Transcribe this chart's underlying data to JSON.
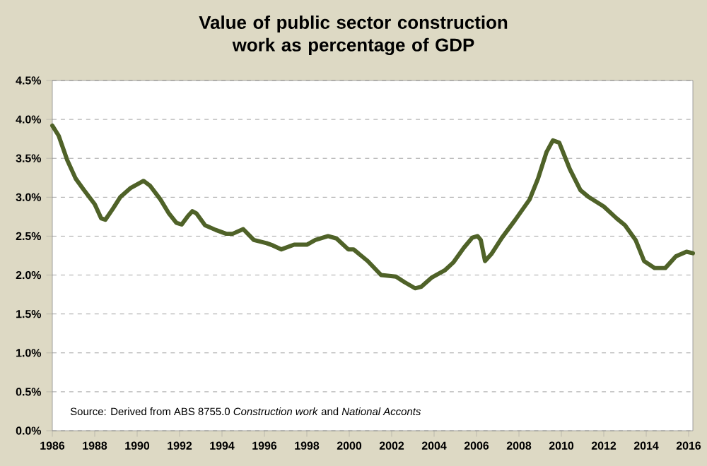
{
  "chart_data": {
    "type": "line",
    "title": "Value of public sector construction work as percentage of GDP",
    "annotations": [
      "Source:  Derived from ABS 8755.0 *Construction work* and *National Acconts*"
    ],
    "x": [
      1986,
      1986.3,
      1986.7,
      1987.1,
      1987.5,
      1988,
      1988.3,
      1988.5,
      1988.85,
      1989.2,
      1989.7,
      1990.3,
      1990.6,
      1991.1,
      1991.5,
      1991.85,
      1992.1,
      1992.4,
      1992.6,
      1992.8,
      1993.2,
      1993.7,
      1994.2,
      1994.5,
      1995,
      1995.5,
      1996.1,
      1996.4,
      1996.8,
      1997.4,
      1998,
      1998.4,
      1999,
      1999.4,
      1999.95,
      2000.2,
      2000.87,
      2001.5,
      2002.2,
      2002.6,
      2003.1,
      2003.4,
      2003.9,
      2004.5,
      2004.9,
      2005.4,
      2005.8,
      2006.05,
      2006.2,
      2006.4,
      2006.7,
      2007.2,
      2007.8,
      2008.5,
      2008.9,
      2009.3,
      2009.6,
      2009.9,
      2010.4,
      2010.9,
      2011.3,
      2012,
      2012.6,
      2013,
      2013.5,
      2013.9,
      2014.4,
      2014.9,
      2015.4,
      2015.9,
      2016.2
    ],
    "series": [
      {
        "color": "#4f6228",
        "values": [
          3.92,
          3.79,
          3.48,
          3.24,
          3.09,
          2.91,
          2.73,
          2.71,
          2.85,
          3.0,
          3.12,
          3.21,
          3.15,
          2.97,
          2.79,
          2.67,
          2.65,
          2.76,
          2.82,
          2.79,
          2.64,
          2.58,
          2.53,
          2.53,
          2.59,
          2.45,
          2.41,
          2.38,
          2.33,
          2.39,
          2.39,
          2.45,
          2.5,
          2.47,
          2.33,
          2.33,
          2.18,
          2.0,
          1.98,
          1.91,
          1.83,
          1.85,
          1.97,
          2.06,
          2.16,
          2.35,
          2.48,
          2.5,
          2.45,
          2.18,
          2.27,
          2.48,
          2.7,
          2.97,
          3.24,
          3.58,
          3.73,
          3.7,
          3.36,
          3.09,
          3.0,
          2.88,
          2.73,
          2.64,
          2.45,
          2.18,
          2.09,
          2.09,
          2.24,
          2.3,
          2.28
        ]
      }
    ],
    "xlim": [
      1986,
      2016.2
    ],
    "ylim": [
      0,
      4.5
    ],
    "xticks": [
      1986,
      1988,
      1990,
      1992,
      1994,
      1996,
      1998,
      2000,
      2002,
      2004,
      2006,
      2008,
      2010,
      2012,
      2014,
      2016
    ],
    "yticks": [
      {
        "value": 0,
        "label": "0.0%"
      },
      {
        "value": 0.5,
        "label": "0.5%"
      },
      {
        "value": 1,
        "label": "1.0%"
      },
      {
        "value": 1.5,
        "label": "1.5%"
      },
      {
        "value": 2,
        "label": "2.0%"
      },
      {
        "value": 2.5,
        "label": "2.5%"
      },
      {
        "value": 3,
        "label": "3.0%"
      },
      {
        "value": 3.5,
        "label": "3.5%"
      },
      {
        "value": 4,
        "label": "4.0%"
      },
      {
        "value": 4.5,
        "label": "4.5%"
      }
    ],
    "grid": "y",
    "marker": "none",
    "line_style": "solid"
  }
}
